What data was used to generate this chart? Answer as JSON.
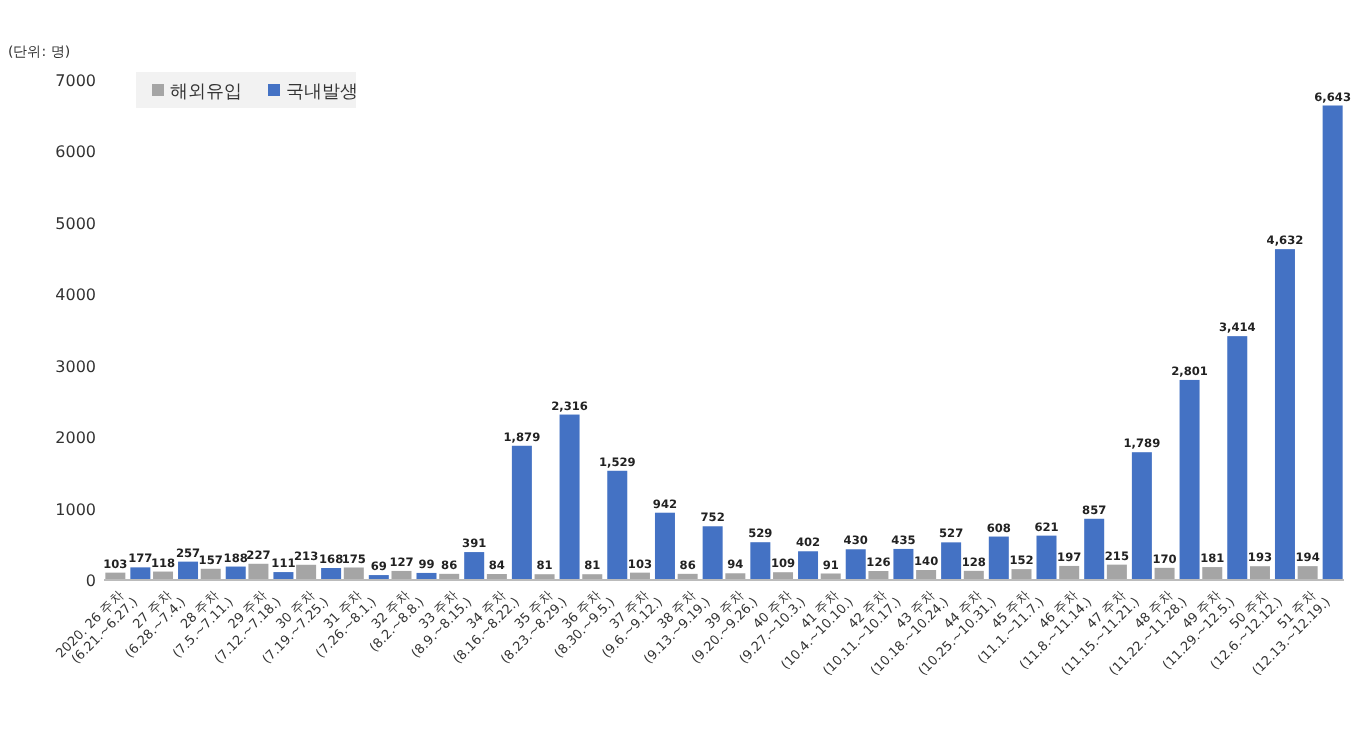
{
  "chart_data": {
    "type": "bar",
    "ylabel": "(단위: 명)",
    "categories": [
      "2020. 26 주차 (6.21.~6.27.)",
      "27 주차 (6.28.~7.4.)",
      "28 주차 (7.5.~7.11.)",
      "29 주차 (7.12.~7.18.)",
      "30 주차 (7.19.~7.25.)",
      "31 주차 (7.26.~8.1.)",
      "32 주차 (8.2.~8.8.)",
      "33 주차 (8.9.~8.15.)",
      "34 주차 (8.16.~8.22.)",
      "35 주차 (8.23.~8.29.)",
      "36 주차 (8.30.~9.5.)",
      "37 주차 (9.6.~9.12.)",
      "38 주차 (9.13.~9.19.)",
      "39 주차 (9.20.~9.26.)",
      "40 주차 (9.27.~10.3.)",
      "41 주차 (10.4.~10.10.)",
      "42 주차 (10.11.~10.17.)",
      "43 주차 (10.18.~10.24.)",
      "44 주차 (10.25.~10.31.)",
      "45 주차 (11.1.~11.7.)",
      "46 주차 (11.8.~11.14.)",
      "47 주차 (11.15.~11.21.)",
      "48 주차 (11.22.~11.28.)",
      "49 주차 (11.29.~12.5.)",
      "50 주차 (12.6.~12.12.)",
      "51 주차 (12.13.~12.19.)"
    ],
    "series": [
      {
        "name": "해외유입",
        "color": "#a5a5a5",
        "values": [
          103,
          118,
          157,
          227,
          213,
          175,
          127,
          86,
          84,
          81,
          81,
          103,
          86,
          94,
          109,
          91,
          126,
          140,
          128,
          152,
          197,
          215,
          170,
          181,
          193,
          194
        ],
        "value_labels": [
          "103",
          "118",
          "157",
          "227",
          "213",
          "175",
          "127",
          "86",
          "84",
          "81",
          "81",
          "103",
          "86",
          "94",
          "109",
          "91",
          "126",
          "140",
          "128",
          "152",
          "197",
          "215",
          "170",
          "181",
          "193",
          "194"
        ]
      },
      {
        "name": "국내발생",
        "color": "#4472c4",
        "values": [
          177,
          257,
          188,
          111,
          168,
          69,
          99,
          391,
          1879,
          2316,
          1529,
          942,
          752,
          529,
          402,
          430,
          435,
          527,
          608,
          621,
          857,
          1789,
          2801,
          3414,
          4632,
          6643
        ],
        "value_labels": [
          "177",
          "257",
          "188",
          "111",
          "168",
          "69",
          "99",
          "391",
          "1,879",
          "2,316",
          "1,529",
          "942",
          "752",
          "529",
          "402",
          "430",
          "435",
          "527",
          "608",
          "621",
          "857",
          "1,789",
          "2,801",
          "3,414",
          "4,632",
          "6,643"
        ]
      }
    ],
    "ylim": [
      0,
      7000
    ],
    "yticks": [
      0,
      1000,
      2000,
      3000,
      4000,
      5000,
      6000,
      7000
    ],
    "legend": "top left"
  }
}
